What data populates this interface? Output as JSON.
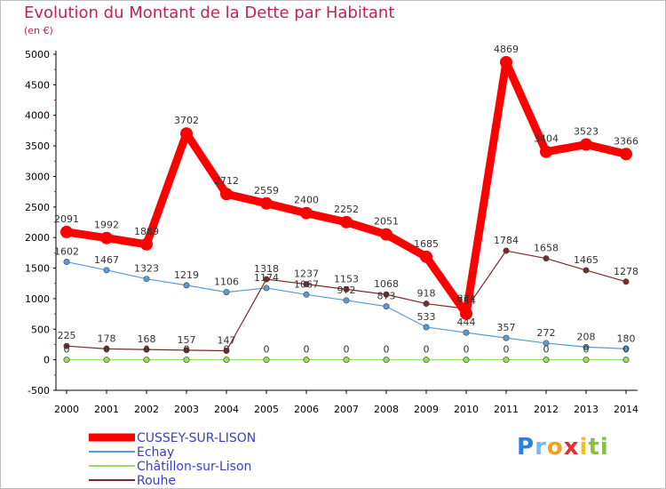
{
  "chart_data": {
    "type": "line",
    "title": "Evolution du Montant de la Dette par Habitant",
    "subtitle": "(en €)",
    "x": [
      "2000",
      "2001",
      "2002",
      "2003",
      "2004",
      "2005",
      "2006",
      "2007",
      "2008",
      "2009",
      "2010",
      "2011",
      "2012",
      "2013",
      "2014"
    ],
    "ylim": [
      -500,
      5000
    ],
    "yticks": [
      "-500",
      "0",
      "500",
      "1000",
      "1500",
      "2000",
      "2500",
      "3000",
      "3500",
      "4000",
      "4500",
      "5000"
    ],
    "grid": false,
    "legend_position": "bottom-left",
    "series": [
      {
        "name": "CUSSEY-SUR-LISON",
        "color": "#ff0000",
        "values": [
          2091,
          1992,
          1889,
          3702,
          2712,
          2559,
          2400,
          2252,
          2051,
          1685,
          754,
          4869,
          3404,
          3523,
          3366
        ],
        "labels": [
          "2091",
          "1992",
          "1889",
          "3702",
          "2712",
          "2559",
          "2400",
          "2252",
          "2051",
          "1685",
          "754",
          "4869",
          "3404",
          "3523",
          "3366"
        ]
      },
      {
        "name": "Echay",
        "color": "#5b9bd5",
        "values": [
          1602,
          1467,
          1323,
          1219,
          1106,
          1174,
          1067,
          972,
          873,
          533,
          444,
          357,
          272,
          208,
          180
        ],
        "labels": [
          "1602",
          "1467",
          "1323",
          "1219",
          "1106",
          "1174",
          "1067",
          "972",
          "873",
          "533",
          "444",
          "357",
          "272",
          "208",
          "180"
        ]
      },
      {
        "name": "Châtillon-sur-Lison",
        "color": "#99dd66",
        "values": [
          0,
          0,
          0,
          0,
          0,
          0,
          0,
          0,
          0,
          0,
          0,
          0,
          0,
          0,
          0
        ],
        "labels": [
          "0",
          "0",
          "0",
          "0",
          "0",
          "0",
          "0",
          "0",
          "0",
          "0",
          "0",
          "0",
          "0",
          "0",
          "0"
        ]
      },
      {
        "name": "Rouhe",
        "color": "#7b2a2a",
        "values": [
          225,
          178,
          168,
          157,
          147,
          1318,
          1237,
          1153,
          1068,
          918,
          834,
          1784,
          1658,
          1465,
          1278
        ],
        "labels": [
          "225",
          "178",
          "168",
          "157",
          "147",
          "1318",
          "1237",
          "1153",
          "1068",
          "918",
          "834",
          "1784",
          "1658",
          "1465",
          "1278"
        ]
      }
    ]
  },
  "logo": {
    "letters": [
      "P",
      "r",
      "o",
      "x",
      "i",
      "t",
      "i"
    ],
    "colors": [
      "#2e7fd9",
      "#7ab8e8",
      "#f0a020",
      "#e03030",
      "#f0c020",
      "#8ac040",
      "#8ac040"
    ]
  }
}
